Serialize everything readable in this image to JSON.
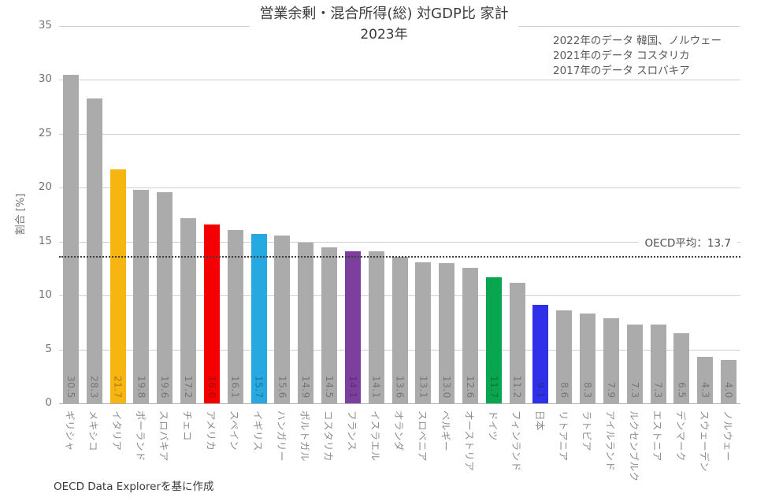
{
  "title": "営業余剰・混合所得(総) 対GDP比 家計",
  "subtitle": "2023年",
  "annotation": {
    "lines": [
      "2022年のデータ 韓国、ノルウェー",
      "2021年のデータ コスタリカ",
      "2017年のデータ スロバキア"
    ]
  },
  "footer": "OECD Data Explorerを基に作成",
  "colors": {
    "bar_default": "#ababab",
    "highlight_italy": "#f7b511",
    "highlight_usa": "#f40000",
    "highlight_uk": "#25a9e0",
    "highlight_france": "#7c3f9e",
    "highlight_germany": "#0aa64f",
    "highlight_japan": "#3030e8",
    "gridline": "#cfcfcf",
    "reference_line": "#3c3c3c"
  },
  "chart_data": {
    "type": "bar",
    "title": "営業余剰・混合所得(総) 対GDP比 家計",
    "subtitle": "2023年",
    "xlabel": "",
    "ylabel": "割合 [%]",
    "ylim": [
      0,
      35
    ],
    "yticks": [
      0,
      5,
      10,
      15,
      20,
      25,
      30,
      35
    ],
    "grid": true,
    "legend": false,
    "reference_line": {
      "value": 13.7,
      "label": "OECD平均：13.7",
      "style": "dotted"
    },
    "categories": [
      "ギリシャ",
      "メキシコ",
      "イタリア",
      "ポーランド",
      "スロバキア",
      "チェコ",
      "アメリカ",
      "スペイン",
      "イギリス",
      "ハンガリー",
      "ポルトガル",
      "コスタリカ",
      "フランス",
      "イスラエル",
      "オランダ",
      "スロベニア",
      "ベルギー",
      "オーストリア",
      "ドイツ",
      "フィンランド",
      "日本",
      "リトアニア",
      "ラトビア",
      "アイルランド",
      "ルクセンブルク",
      "エストニア",
      "デンマーク",
      "スウェーデン",
      "ノルウェー"
    ],
    "values": [
      30.5,
      28.3,
      21.7,
      19.8,
      19.6,
      17.2,
      16.6,
      16.1,
      15.7,
      15.6,
      14.9,
      14.5,
      14.1,
      14.1,
      13.6,
      13.1,
      13.0,
      12.6,
      11.7,
      11.2,
      9.1,
      8.6,
      8.3,
      7.9,
      7.3,
      7.3,
      6.5,
      4.3,
      4.0
    ],
    "bar_colors": [
      "#ababab",
      "#ababab",
      "#f7b511",
      "#ababab",
      "#ababab",
      "#ababab",
      "#f40000",
      "#ababab",
      "#25a9e0",
      "#ababab",
      "#ababab",
      "#ababab",
      "#7c3f9e",
      "#ababab",
      "#ababab",
      "#ababab",
      "#ababab",
      "#ababab",
      "#0aa64f",
      "#ababab",
      "#3030e8",
      "#ababab",
      "#ababab",
      "#ababab",
      "#ababab",
      "#ababab",
      "#ababab",
      "#ababab",
      "#ababab"
    ]
  }
}
